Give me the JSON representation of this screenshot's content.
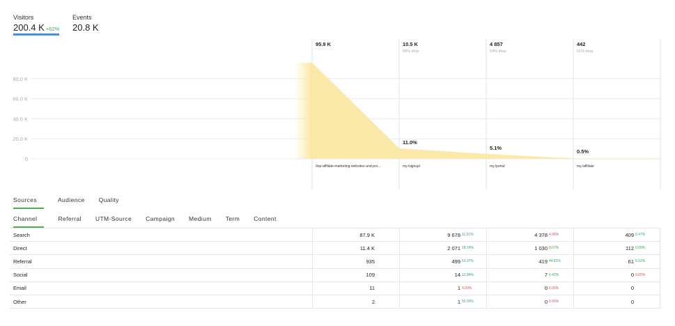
{
  "metrics": {
    "visitors": {
      "label": "Visitors",
      "value": "200.4 K",
      "change": "+62%"
    },
    "events": {
      "label": "Events",
      "value": "20.8 K"
    }
  },
  "chart_data": {
    "type": "area",
    "yticks": [
      "80.0 K",
      "60.0 K",
      "40.0 K",
      "20.0 K",
      "0"
    ],
    "ylim": [
      0,
      100000
    ],
    "steps": [
      {
        "count": "95.9 K",
        "value": 95900,
        "drop": "",
        "conv": "",
        "path": "/top-affiliate-marketing-websites-and-pro..."
      },
      {
        "count": "10.5 K",
        "value": 10500,
        "drop": "89% drop",
        "conv": "11.0%",
        "path": "my./signup/"
      },
      {
        "count": "4 857",
        "value": 4857,
        "drop": "54% drop",
        "conv": "5.1%",
        "path": "my./portal"
      },
      {
        "count": "442",
        "value": 442,
        "drop": "91% drop",
        "conv": "0.5%",
        "path": "my./affiliate"
      }
    ],
    "colors": {
      "fill": "#fbe7a0",
      "grid": "#ececec",
      "column": "#cfe8f5"
    }
  },
  "tabs_primary": [
    "Sources",
    "Audience",
    "Quality"
  ],
  "tabs_secondary": [
    "Channel",
    "Referral",
    "UTM-Source",
    "Campaign",
    "Medium",
    "Term",
    "Content"
  ],
  "table": [
    {
      "name": "Search",
      "c0": "87.9 K",
      "c1": "9 678",
      "s1": "11.01%",
      "k1": "green",
      "c2": "4 378",
      "s2": "4.98%",
      "k2": "red",
      "c3": "409",
      "s3": "0.47%",
      "k3": "green"
    },
    {
      "name": "Direct",
      "c0": "11.4 K",
      "c1": "2 071",
      "s1": "18.24%",
      "k1": "green",
      "c2": "1 030",
      "s2": "9.07%",
      "k2": "green",
      "c3": "112",
      "s3": "0.99%",
      "k3": "green"
    },
    {
      "name": "Referral",
      "c0": "935",
      "c1": "499",
      "s1": "53.37%",
      "k1": "green",
      "c2": "419",
      "s2": "44.81%",
      "k2": "green",
      "c3": "61",
      "s3": "6.52%",
      "k3": "green"
    },
    {
      "name": "Social",
      "c0": "109",
      "c1": "14",
      "s1": "12.84%",
      "k1": "green",
      "c2": "7",
      "s2": "6.42%",
      "k2": "green",
      "c3": "0",
      "s3": "0.00%",
      "k3": "red"
    },
    {
      "name": "Email",
      "c0": "11",
      "c1": "1",
      "s1": "9.09%",
      "k1": "red",
      "c2": "0",
      "s2": "0.00%",
      "k2": "red",
      "c3": "0",
      "s3": "",
      "k3": ""
    },
    {
      "name": "Other",
      "c0": "2",
      "c1": "1",
      "s1": "50.00%",
      "k1": "green",
      "c2": "0",
      "s2": "0.00%",
      "k2": "red",
      "c3": "0",
      "s3": "",
      "k3": ""
    }
  ]
}
